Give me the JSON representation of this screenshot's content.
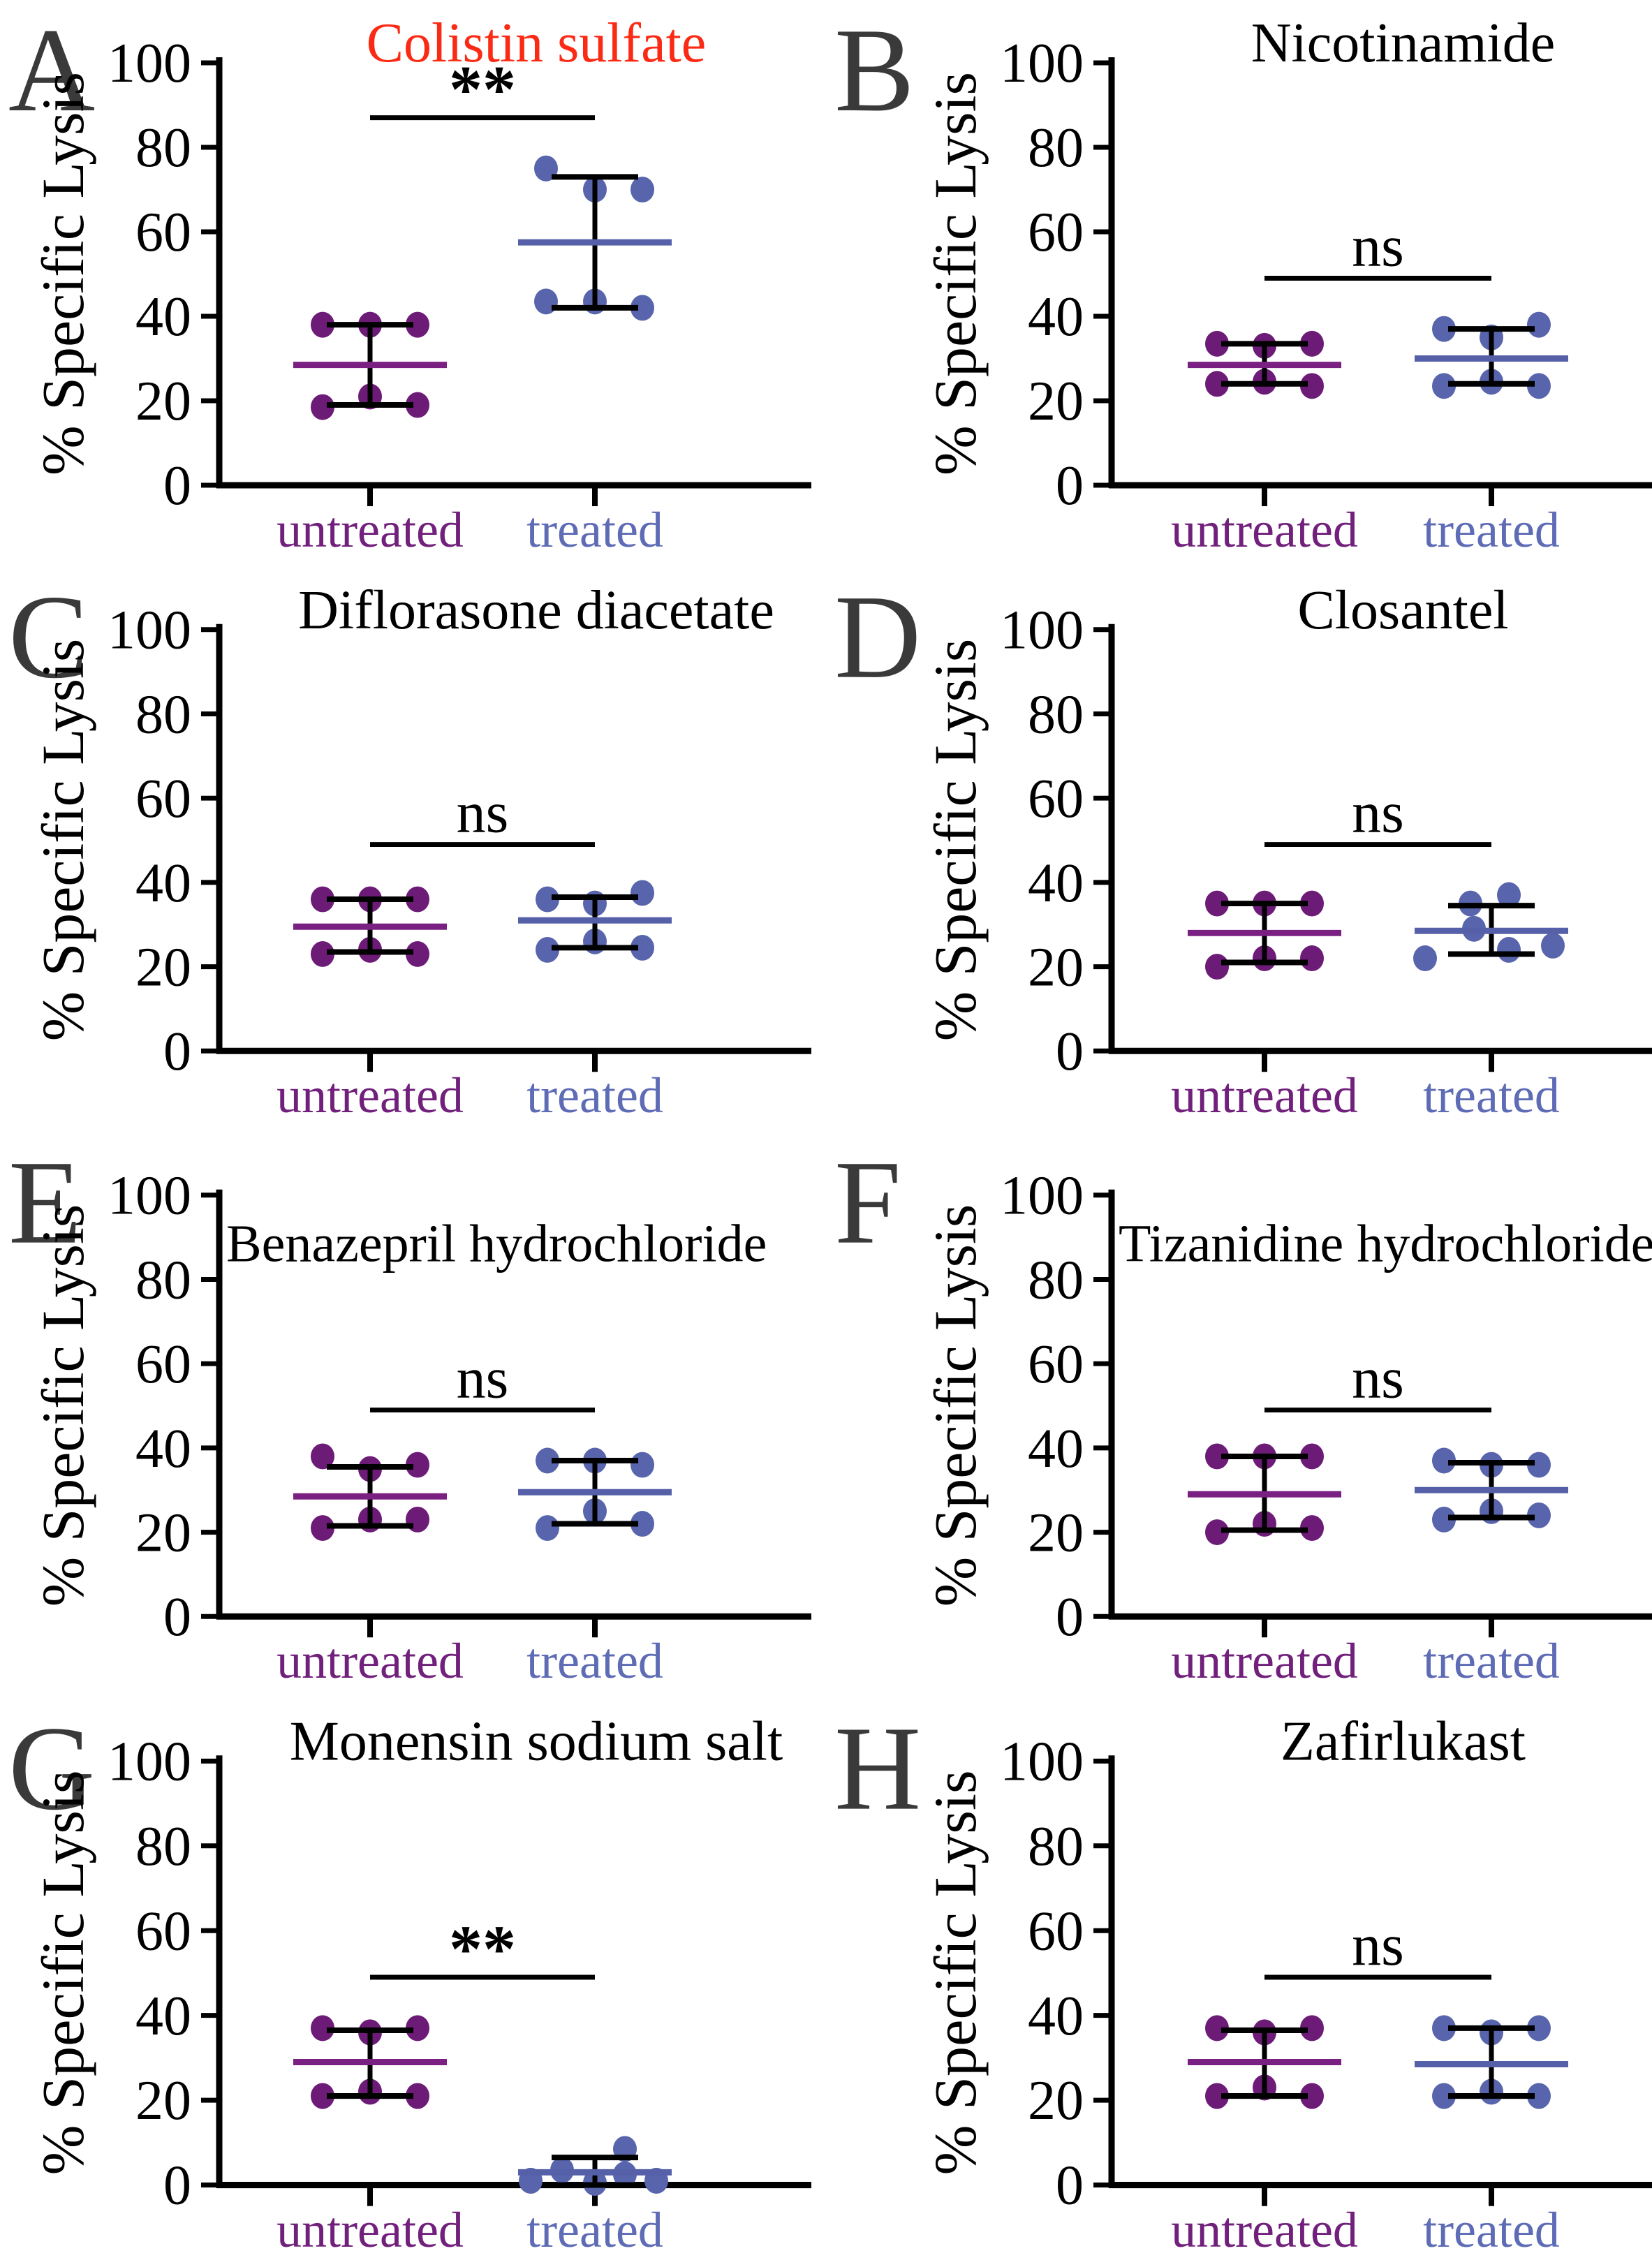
{
  "figure": {
    "ylabel": "% Specific Lysis",
    "group_labels": [
      "untreated",
      "treated"
    ],
    "colors": {
      "untreated_point": "#6C1B76",
      "untreated_median": "#7A2082",
      "untreated_label": "#71207B",
      "treated_point": "#5864AB",
      "treated_median": "#5560A8",
      "treated_label": "#5E6BB5",
      "axis": "#000000",
      "panel_letter": "#3A3A3A",
      "title_default": "#000000",
      "title_highlight": "#FA2A15"
    }
  },
  "chart_data": [
    {
      "type": "scatter",
      "letter": "A",
      "title": "Colistin sulfate",
      "title_color": "#FA2A15",
      "title_layout": "top",
      "ylabel": "% Specific Lysis",
      "ylim": [
        0,
        100
      ],
      "yticks": [
        0,
        20,
        40,
        60,
        80,
        100
      ],
      "significance": {
        "label": "**",
        "bar_y": 87
      },
      "groups": [
        {
          "name": "untreated",
          "median": 28.5,
          "whisker_low": 19,
          "whisker_high": 38,
          "points": [
            {
              "dx": -68,
              "y": 38
            },
            {
              "dx": 0,
              "y": 38
            },
            {
              "dx": 68,
              "y": 38
            },
            {
              "dx": -68,
              "y": 18.5
            },
            {
              "dx": 0,
              "y": 21
            },
            {
              "dx": 68,
              "y": 19
            }
          ]
        },
        {
          "name": "treated",
          "median": 57.5,
          "whisker_low": 42,
          "whisker_high": 73,
          "points": [
            {
              "dx": -70,
              "y": 75
            },
            {
              "dx": 0,
              "y": 70
            },
            {
              "dx": 68,
              "y": 70
            },
            {
              "dx": -70,
              "y": 43.5
            },
            {
              "dx": 0,
              "y": 43.5
            },
            {
              "dx": 68,
              "y": 42
            }
          ]
        }
      ]
    },
    {
      "type": "scatter",
      "letter": "B",
      "title": "Nicotinamide",
      "title_color": "#000000",
      "title_layout": "top",
      "ylabel": "% Specific Lysis",
      "ylim": [
        0,
        100
      ],
      "yticks": [
        0,
        20,
        40,
        60,
        80,
        100
      ],
      "significance": {
        "label": "ns",
        "bar_y": 49
      },
      "groups": [
        {
          "name": "untreated",
          "median": 28.5,
          "whisker_low": 24,
          "whisker_high": 33.5,
          "points": [
            {
              "dx": -68,
              "y": 33.5
            },
            {
              "dx": 0,
              "y": 33
            },
            {
              "dx": 68,
              "y": 33.5
            },
            {
              "dx": -68,
              "y": 24
            },
            {
              "dx": 0,
              "y": 24.5
            },
            {
              "dx": 68,
              "y": 23.5
            }
          ]
        },
        {
          "name": "treated",
          "median": 30,
          "whisker_low": 24,
          "whisker_high": 37,
          "points": [
            {
              "dx": -68,
              "y": 37
            },
            {
              "dx": 0,
              "y": 35
            },
            {
              "dx": 68,
              "y": 38
            },
            {
              "dx": -68,
              "y": 23.5
            },
            {
              "dx": 0,
              "y": 24.5
            },
            {
              "dx": 68,
              "y": 23.5
            }
          ]
        }
      ]
    },
    {
      "type": "scatter",
      "letter": "C",
      "title": "Diflorasone diacetate",
      "title_color": "#000000",
      "title_layout": "top",
      "ylabel": "% Specific Lysis",
      "ylim": [
        0,
        100
      ],
      "yticks": [
        0,
        20,
        40,
        60,
        80,
        100
      ],
      "significance": {
        "label": "ns",
        "bar_y": 49
      },
      "groups": [
        {
          "name": "untreated",
          "median": 29.5,
          "whisker_low": 23.5,
          "whisker_high": 36,
          "points": [
            {
              "dx": -68,
              "y": 36
            },
            {
              "dx": 0,
              "y": 36
            },
            {
              "dx": 68,
              "y": 36
            },
            {
              "dx": -68,
              "y": 23
            },
            {
              "dx": 0,
              "y": 24
            },
            {
              "dx": 68,
              "y": 23
            }
          ]
        },
        {
          "name": "treated",
          "median": 31,
          "whisker_low": 24.5,
          "whisker_high": 36.5,
          "points": [
            {
              "dx": -68,
              "y": 36
            },
            {
              "dx": 0,
              "y": 35
            },
            {
              "dx": 68,
              "y": 37.5
            },
            {
              "dx": -68,
              "y": 24
            },
            {
              "dx": 0,
              "y": 26
            },
            {
              "dx": 68,
              "y": 24.5
            }
          ]
        }
      ]
    },
    {
      "type": "scatter",
      "letter": "D",
      "title": "Closantel",
      "title_color": "#000000",
      "title_layout": "top",
      "ylabel": "% Specific Lysis",
      "ylim": [
        0,
        100
      ],
      "yticks": [
        0,
        20,
        40,
        60,
        80,
        100
      ],
      "significance": {
        "label": "ns",
        "bar_y": 49
      },
      "groups": [
        {
          "name": "untreated",
          "median": 28,
          "whisker_low": 21,
          "whisker_high": 35,
          "points": [
            {
              "dx": -68,
              "y": 35
            },
            {
              "dx": 0,
              "y": 35
            },
            {
              "dx": 68,
              "y": 35
            },
            {
              "dx": -68,
              "y": 20
            },
            {
              "dx": 0,
              "y": 22
            },
            {
              "dx": 68,
              "y": 22
            }
          ]
        },
        {
          "name": "treated",
          "median": 28.5,
          "whisker_low": 23,
          "whisker_high": 34.5,
          "points": [
            {
              "dx": -30,
              "y": 35
            },
            {
              "dx": 25,
              "y": 37
            },
            {
              "dx": -25,
              "y": 29
            },
            {
              "dx": -95,
              "y": 22
            },
            {
              "dx": 25,
              "y": 24
            },
            {
              "dx": 88,
              "y": 25
            }
          ]
        }
      ]
    },
    {
      "type": "scatter",
      "letter": "E",
      "title": "Benazepril hydrochloride",
      "title_color": "#000000",
      "title_layout": "inset",
      "ylabel": "% Specific Lysis",
      "ylim": [
        0,
        100
      ],
      "yticks": [
        0,
        20,
        40,
        60,
        80,
        100
      ],
      "significance": {
        "label": "ns",
        "bar_y": 49
      },
      "groups": [
        {
          "name": "untreated",
          "median": 28.5,
          "whisker_low": 21.5,
          "whisker_high": 35.5,
          "points": [
            {
              "dx": -68,
              "y": 38
            },
            {
              "dx": 0,
              "y": 35
            },
            {
              "dx": 68,
              "y": 36
            },
            {
              "dx": -68,
              "y": 21
            },
            {
              "dx": 0,
              "y": 23
            },
            {
              "dx": 68,
              "y": 23
            }
          ]
        },
        {
          "name": "treated",
          "median": 29.5,
          "whisker_low": 22,
          "whisker_high": 37,
          "points": [
            {
              "dx": -68,
              "y": 37
            },
            {
              "dx": 0,
              "y": 37
            },
            {
              "dx": 68,
              "y": 36
            },
            {
              "dx": -68,
              "y": 21
            },
            {
              "dx": 0,
              "y": 25
            },
            {
              "dx": 68,
              "y": 22
            }
          ]
        }
      ]
    },
    {
      "type": "scatter",
      "letter": "F",
      "title": "Tizanidine hydrochloride",
      "title_color": "#000000",
      "title_layout": "inset",
      "ylabel": "% Specific Lysis",
      "ylim": [
        0,
        100
      ],
      "yticks": [
        0,
        20,
        40,
        60,
        80,
        100
      ],
      "significance": {
        "label": "ns",
        "bar_y": 49
      },
      "groups": [
        {
          "name": "untreated",
          "median": 29,
          "whisker_low": 20.5,
          "whisker_high": 38,
          "points": [
            {
              "dx": -68,
              "y": 38
            },
            {
              "dx": 0,
              "y": 38
            },
            {
              "dx": 68,
              "y": 38
            },
            {
              "dx": -68,
              "y": 20
            },
            {
              "dx": 0,
              "y": 22
            },
            {
              "dx": 68,
              "y": 21
            }
          ]
        },
        {
          "name": "treated",
          "median": 30,
          "whisker_low": 23.5,
          "whisker_high": 36.5,
          "points": [
            {
              "dx": -68,
              "y": 37
            },
            {
              "dx": 0,
              "y": 36
            },
            {
              "dx": 68,
              "y": 36
            },
            {
              "dx": -68,
              "y": 23
            },
            {
              "dx": 0,
              "y": 25
            },
            {
              "dx": 68,
              "y": 24
            }
          ]
        }
      ]
    },
    {
      "type": "scatter",
      "letter": "G",
      "title": "Monensin sodium salt",
      "title_color": "#000000",
      "title_layout": "top",
      "ylabel": "% Specific Lysis",
      "ylim": [
        0,
        100
      ],
      "yticks": [
        0,
        20,
        40,
        60,
        80,
        100
      ],
      "significance": {
        "label": "**",
        "bar_y": 49
      },
      "groups": [
        {
          "name": "untreated",
          "median": 29,
          "whisker_low": 21,
          "whisker_high": 36.5,
          "points": [
            {
              "dx": -68,
              "y": 37
            },
            {
              "dx": 0,
              "y": 36
            },
            {
              "dx": 68,
              "y": 37
            },
            {
              "dx": -68,
              "y": 21
            },
            {
              "dx": 0,
              "y": 22
            },
            {
              "dx": 68,
              "y": 21
            }
          ]
        },
        {
          "name": "treated",
          "median": 3,
          "whisker_low": 0,
          "whisker_high": 6.5,
          "points": [
            {
              "dx": -92,
              "y": 1
            },
            {
              "dx": -47,
              "y": 3.5
            },
            {
              "dx": 0,
              "y": 0.5
            },
            {
              "dx": 43,
              "y": 8.5
            },
            {
              "dx": 43,
              "y": 2.5
            },
            {
              "dx": 88,
              "y": 1
            }
          ]
        }
      ]
    },
    {
      "type": "scatter",
      "letter": "H",
      "title": "Zafirlukast",
      "title_color": "#000000",
      "title_layout": "top",
      "ylabel": "% Specific Lysis",
      "ylim": [
        0,
        100
      ],
      "yticks": [
        0,
        20,
        40,
        60,
        80,
        100
      ],
      "significance": {
        "label": "ns",
        "bar_y": 49
      },
      "groups": [
        {
          "name": "untreated",
          "median": 29,
          "whisker_low": 21,
          "whisker_high": 36.5,
          "points": [
            {
              "dx": -68,
              "y": 37
            },
            {
              "dx": 0,
              "y": 36
            },
            {
              "dx": 68,
              "y": 37
            },
            {
              "dx": -68,
              "y": 21
            },
            {
              "dx": 0,
              "y": 23
            },
            {
              "dx": 68,
              "y": 21
            }
          ]
        },
        {
          "name": "treated",
          "median": 28.5,
          "whisker_low": 21,
          "whisker_high": 37,
          "points": [
            {
              "dx": -68,
              "y": 37
            },
            {
              "dx": 0,
              "y": 36
            },
            {
              "dx": 68,
              "y": 37
            },
            {
              "dx": -68,
              "y": 21
            },
            {
              "dx": 0,
              "y": 22
            },
            {
              "dx": 68,
              "y": 21
            }
          ]
        }
      ]
    }
  ]
}
